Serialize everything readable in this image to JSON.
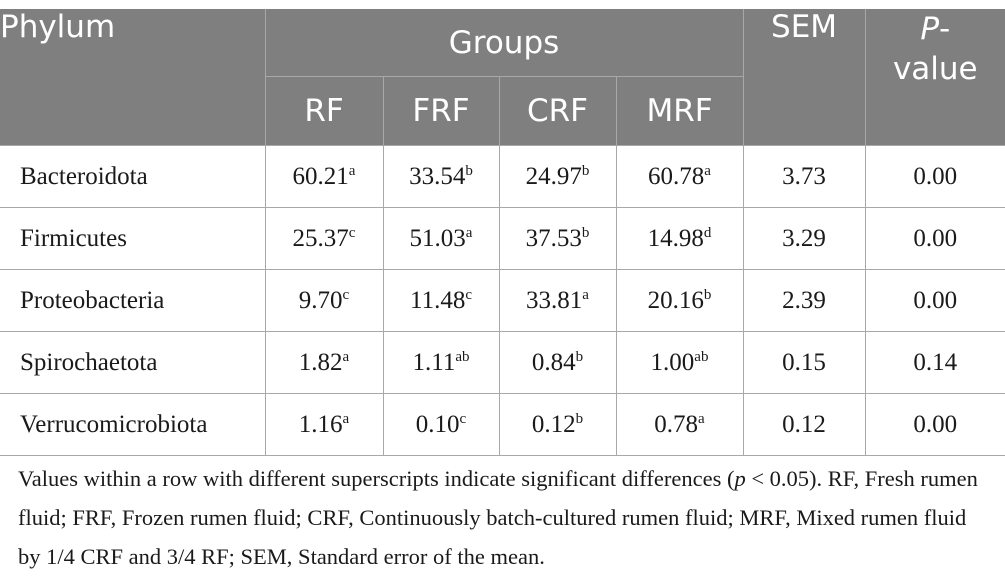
{
  "header": {
    "phylum": "Phylum",
    "groups": "Groups",
    "sem": "SEM",
    "p_label": "P",
    "p_suffix": "-",
    "p_value_word": "value",
    "subgroups": [
      "RF",
      "FRF",
      "CRF",
      "MRF"
    ]
  },
  "rows": [
    {
      "name": "Bacteroidota",
      "cells": [
        {
          "v": "60.21",
          "s": "a"
        },
        {
          "v": "33.54",
          "s": "b"
        },
        {
          "v": "24.97",
          "s": "b"
        },
        {
          "v": "60.78",
          "s": "a"
        }
      ],
      "sem": "3.73",
      "p": "0.00"
    },
    {
      "name": "Firmicutes",
      "cells": [
        {
          "v": "25.37",
          "s": "c"
        },
        {
          "v": "51.03",
          "s": "a"
        },
        {
          "v": "37.53",
          "s": "b"
        },
        {
          "v": "14.98",
          "s": "d"
        }
      ],
      "sem": "3.29",
      "p": "0.00"
    },
    {
      "name": "Proteobacteria",
      "cells": [
        {
          "v": "9.70",
          "s": "c"
        },
        {
          "v": "11.48",
          "s": "c"
        },
        {
          "v": "33.81",
          "s": "a"
        },
        {
          "v": "20.16",
          "s": "b"
        }
      ],
      "sem": "2.39",
      "p": "0.00"
    },
    {
      "name": "Spirochaetota",
      "cells": [
        {
          "v": "1.82",
          "s": "a"
        },
        {
          "v": "1.11",
          "s": "ab"
        },
        {
          "v": "0.84",
          "s": "b"
        },
        {
          "v": "1.00",
          "s": "ab"
        }
      ],
      "sem": "0.15",
      "p": "0.14"
    },
    {
      "name": "Verrucomicrobiota",
      "cells": [
        {
          "v": "1.16",
          "s": "a"
        },
        {
          "v": "0.10",
          "s": "c"
        },
        {
          "v": "0.12",
          "s": "b"
        },
        {
          "v": "0.78",
          "s": "a"
        }
      ],
      "sem": "0.12",
      "p": "0.00"
    }
  ],
  "footnote": {
    "part1": "Values within a row with different superscripts indicate significant differences (",
    "p_italic": "p",
    "part2": " < 0.05). RF, Fresh rumen fluid; FRF, Frozen rumen fluid; CRF, Continuously batch-cultured rumen fluid; MRF, Mixed rumen fluid by 1/4 CRF and 3/4 RF; SEM, Standard error of the mean."
  },
  "colors": {
    "header_bg": "#7f7f7f",
    "header_text": "#ffffff",
    "border": "#a8a8a8",
    "body_text": "#1a1a1a"
  }
}
